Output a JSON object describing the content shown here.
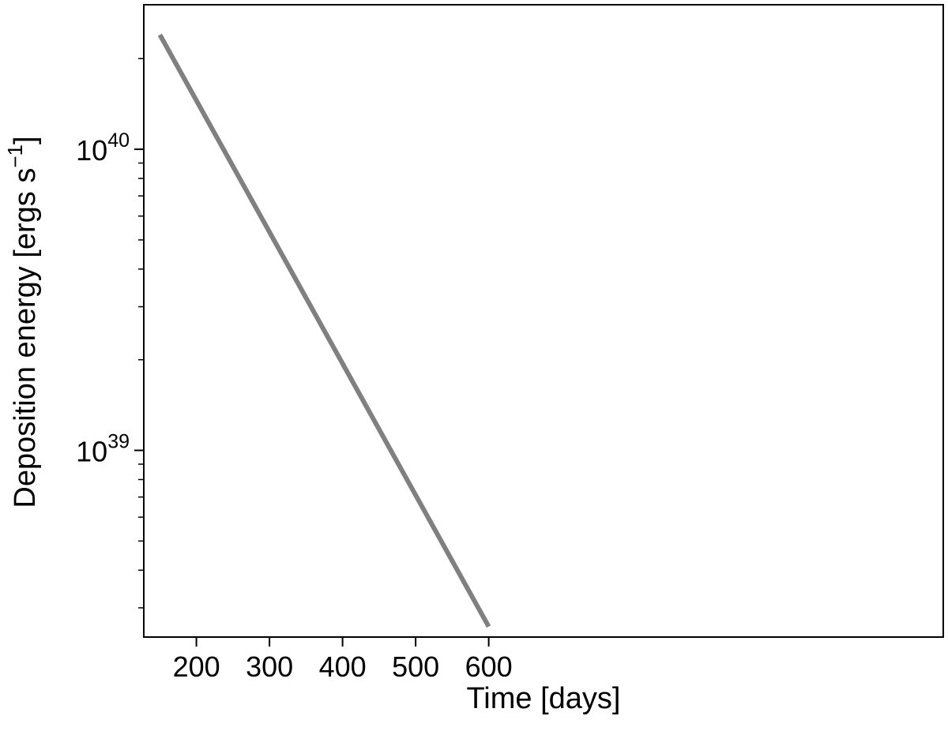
{
  "chart_data": {
    "type": "line",
    "xlabel": "Time [days]",
    "ylabel_main": "Deposition energy [ergs s",
    "ylabel_sup": "−1",
    "ylabel_close": "]",
    "xlim": [
      128,
      1222
    ],
    "ylim_log10": [
      38.38,
      40.48
    ],
    "yscale": "log",
    "grid": false,
    "x_ticks": [
      200,
      300,
      400,
      500,
      600
    ],
    "y_major_ticks": [
      {
        "value": 1e+39,
        "base": "10",
        "exp": "39"
      },
      {
        "value": 1e+40,
        "base": "10",
        "exp": "40"
      }
    ],
    "y_minor_ticks": [
      3e+38,
      4e+38,
      5e+38,
      6e+38,
      7e+38,
      8e+38,
      9e+38,
      2e+39,
      3e+39,
      4e+39,
      5e+39,
      6e+39,
      7e+39,
      8e+39,
      9e+39,
      2e+40
    ],
    "series": [
      {
        "color": "#808080",
        "x": [
          150,
          600
        ],
        "y": [
          2.4e+40,
          2.6e+38
        ]
      }
    ]
  }
}
